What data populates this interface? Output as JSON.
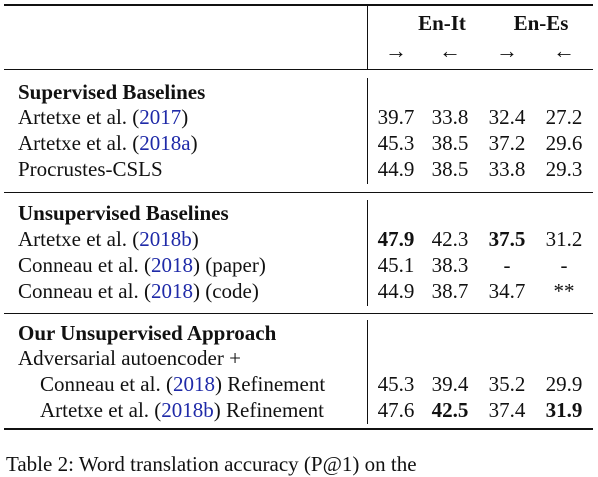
{
  "header": {
    "groups": [
      "En-It",
      "En-Es"
    ],
    "directions": [
      "→",
      "←",
      "→",
      "←"
    ]
  },
  "sections": [
    {
      "title": "Supervised Baselines",
      "rows": [
        {
          "parts": [
            {
              "t": "Artetxe et al. (",
              "c": false
            },
            {
              "t": "2017",
              "c": true
            },
            {
              "t": ")",
              "c": false
            }
          ],
          "values": [
            "39.7",
            "33.8",
            "32.4",
            "27.2"
          ],
          "bold": [
            false,
            false,
            false,
            false
          ]
        },
        {
          "parts": [
            {
              "t": "Artetxe et al. (",
              "c": false
            },
            {
              "t": "2018a",
              "c": true
            },
            {
              "t": ")",
              "c": false
            }
          ],
          "values": [
            "45.3",
            "38.5",
            "37.2",
            "29.6"
          ],
          "bold": [
            false,
            false,
            false,
            false
          ]
        },
        {
          "parts": [
            {
              "t": "Procrustes-CSLS",
              "c": false
            }
          ],
          "values": [
            "44.9",
            "38.5",
            "33.8",
            "29.3"
          ],
          "bold": [
            false,
            false,
            false,
            false
          ]
        }
      ]
    },
    {
      "title": "Unsupervised Baselines",
      "rows": [
        {
          "parts": [
            {
              "t": "Artetxe et al. (",
              "c": false
            },
            {
              "t": "2018b",
              "c": true
            },
            {
              "t": ")",
              "c": false
            }
          ],
          "values": [
            "47.9",
            "42.3",
            "37.5",
            "31.2"
          ],
          "bold": [
            true,
            false,
            true,
            false
          ]
        },
        {
          "parts": [
            {
              "t": "Conneau et al. (",
              "c": false
            },
            {
              "t": "2018",
              "c": true
            },
            {
              "t": ") (paper)",
              "c": false
            }
          ],
          "values": [
            "45.1",
            "38.3",
            "-",
            "-"
          ],
          "bold": [
            false,
            false,
            false,
            false
          ]
        },
        {
          "parts": [
            {
              "t": "Conneau et al. (",
              "c": false
            },
            {
              "t": "2018",
              "c": true
            },
            {
              "t": ") (code)",
              "c": false
            }
          ],
          "values": [
            "44.9",
            "38.7",
            "34.7",
            "**"
          ],
          "bold": [
            false,
            false,
            false,
            false
          ]
        }
      ]
    },
    {
      "title": "Our Unsupervised Approach",
      "subtitle": "Adversarial autoencoder +",
      "rows": [
        {
          "indent": true,
          "parts": [
            {
              "t": "Conneau et al. (",
              "c": false
            },
            {
              "t": "2018",
              "c": true
            },
            {
              "t": ") Refinement",
              "c": false
            }
          ],
          "values": [
            "45.3",
            "39.4",
            "35.2",
            "29.9"
          ],
          "bold": [
            false,
            false,
            false,
            false
          ]
        },
        {
          "indent": true,
          "parts": [
            {
              "t": "Artetxe et al. (",
              "c": false
            },
            {
              "t": "2018b",
              "c": true
            },
            {
              "t": ") Refinement",
              "c": false
            }
          ],
          "values": [
            "47.6",
            "42.5",
            "37.4",
            "31.9"
          ],
          "bold": [
            false,
            true,
            false,
            true
          ]
        }
      ]
    }
  ],
  "caption": "Table 2: Word translation accuracy (P@1) on the"
}
